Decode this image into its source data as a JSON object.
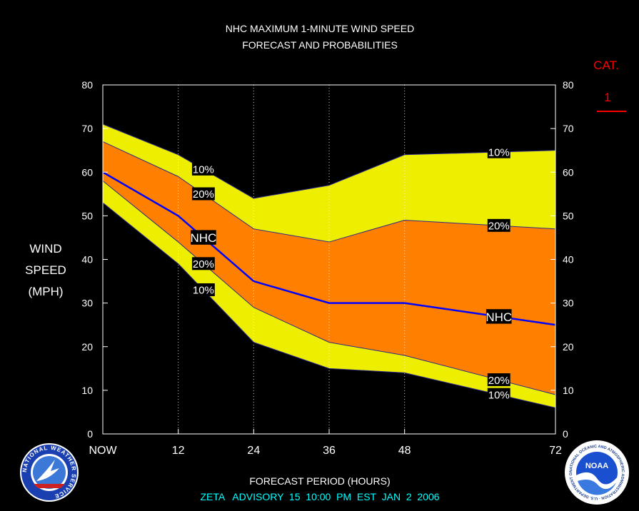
{
  "title_line1": "NHC MAXIMUM 1-MINUTE WIND SPEED",
  "title_line2": "FORECAST AND PROBABILITIES",
  "ylabel_lines": [
    "WIND",
    "SPEED",
    "(MPH)"
  ],
  "xlabel": "FORECAST PERIOD (HOURS)",
  "advisory": "ZETA   ADVISORY  15  10:00  PM  EST  JAN  2  2006",
  "category": {
    "heading": "CAT.",
    "value": "1",
    "color": "#ff0000"
  },
  "colors": {
    "background": "#000000",
    "band10": "#eeee00",
    "band20": "#ff8000",
    "forecast_line": "#0000ff",
    "advisory_text": "#00ffff",
    "border": "#ffffff"
  },
  "logos": {
    "left": {
      "name": "national-weather-service-logo",
      "text": "NATIONAL WEATHER SERVICE"
    },
    "right": {
      "name": "noaa-logo",
      "text": "NOAA",
      "ring_text": "NATIONAL OCEANIC AND ATMOSPHERIC ADMINISTRATION · U.S. DEPARTMENT OF COMMERCE"
    }
  },
  "chart_data": {
    "type": "area",
    "title": "NHC MAXIMUM 1-MINUTE WIND SPEED FORECAST AND PROBABILITIES",
    "xlabel": "FORECAST PERIOD (HOURS)",
    "ylabel": "WIND SPEED (MPH)",
    "x_ticks": [
      0,
      12,
      24,
      36,
      48,
      72
    ],
    "x_tick_labels": [
      "NOW",
      "12",
      "24",
      "36",
      "48",
      "72"
    ],
    "y_ticks": [
      0,
      10,
      20,
      30,
      40,
      50,
      60,
      70,
      80
    ],
    "xlim": [
      0,
      72
    ],
    "ylim": [
      0,
      80
    ],
    "vertical_grid": "dotted",
    "hours": [
      0,
      12,
      24,
      36,
      48,
      72
    ],
    "series": [
      {
        "name": "10%",
        "role": "upper",
        "values": [
          71,
          64,
          54,
          57,
          64,
          65
        ]
      },
      {
        "name": "20%",
        "role": "upper",
        "values": [
          67,
          59,
          47,
          44,
          49,
          47
        ]
      },
      {
        "name": "NHC",
        "values": [
          60,
          50,
          35,
          30,
          30,
          25
        ]
      },
      {
        "name": "20%",
        "role": "lower",
        "values": [
          58,
          44,
          29,
          21,
          18,
          9
        ]
      },
      {
        "name": "10%",
        "role": "lower",
        "values": [
          53,
          39,
          21,
          15,
          14,
          6
        ]
      }
    ],
    "curve_labels": [
      {
        "text": "10%",
        "series": 0,
        "hour": 16
      },
      {
        "text": "20%",
        "series": 1,
        "hour": 16
      },
      {
        "text": "NHC",
        "series": 2,
        "hour": 16
      },
      {
        "text": "20%",
        "series": 3,
        "hour": 16
      },
      {
        "text": "10%",
        "series": 4,
        "hour": 16
      },
      {
        "text": "10%",
        "series": 0,
        "hour": 63
      },
      {
        "text": "20%",
        "series": 1,
        "hour": 63
      },
      {
        "text": "NHC",
        "series": 2,
        "hour": 63
      },
      {
        "text": "20%",
        "series": 3,
        "hour": 63
      },
      {
        "text": "10%",
        "series": 4,
        "hour": 63
      }
    ]
  }
}
